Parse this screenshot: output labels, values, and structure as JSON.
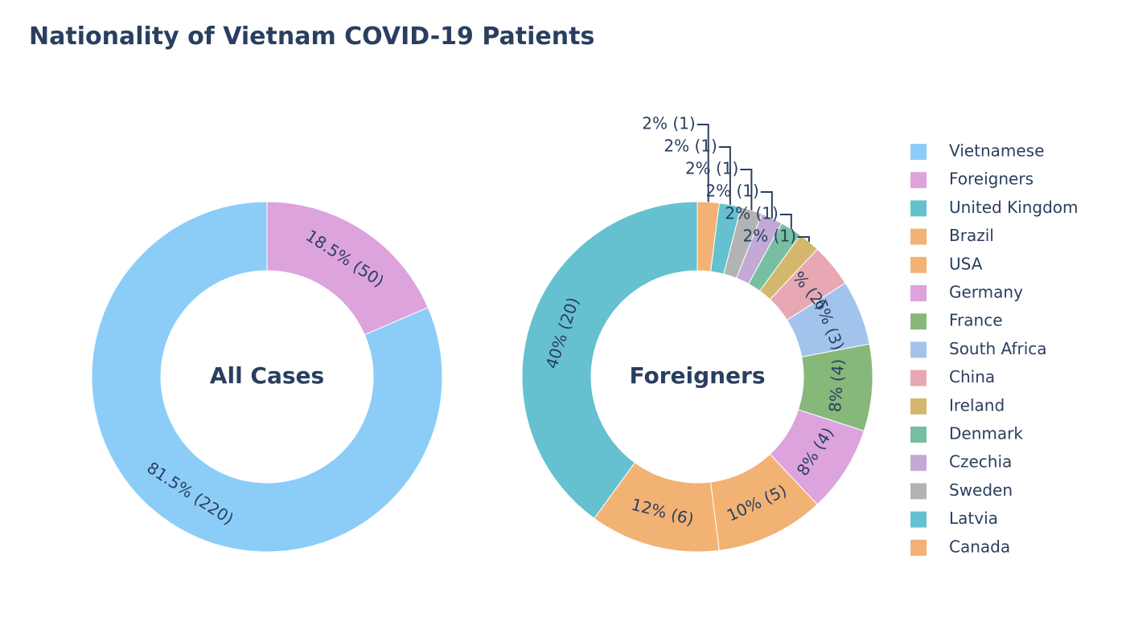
{
  "chart_data": {
    "title": "Nationality of Vietnam COVID-19 Patients",
    "legend": {
      "position": "right",
      "entries": [
        {
          "name": "Vietnamese",
          "color": "#8ccdf7"
        },
        {
          "name": "Foreigners",
          "color": "#dda3dd"
        },
        {
          "name": "United Kingdom",
          "color": "#65c1cf"
        },
        {
          "name": "Brazil",
          "color": "#f2b274"
        },
        {
          "name": "USA",
          "color": "#f2b274"
        },
        {
          "name": "Germany",
          "color": "#dda3dd"
        },
        {
          "name": "France",
          "color": "#86b87a"
        },
        {
          "name": "South Africa",
          "color": "#a2c4ec"
        },
        {
          "name": "China",
          "color": "#e8a8b3"
        },
        {
          "name": "Ireland",
          "color": "#d2b76c"
        },
        {
          "name": "Denmark",
          "color": "#77bea2"
        },
        {
          "name": "Czechia",
          "color": "#c3aad6"
        },
        {
          "name": "Sweden",
          "color": "#b3b3b3"
        },
        {
          "name": "Latvia",
          "color": "#65c1cf"
        },
        {
          "name": "Canada",
          "color": "#f2b274"
        }
      ]
    },
    "charts": [
      {
        "type": "pie",
        "hole": true,
        "center_label": "All Cases",
        "slices": [
          {
            "name": "Vietnamese",
            "value": 220,
            "label": "81.5% (220)",
            "color": "#8ccdf7"
          },
          {
            "name": "Foreigners",
            "value": 50,
            "label": "18.5% (50)",
            "color": "#dda3dd"
          }
        ]
      },
      {
        "type": "pie",
        "hole": true,
        "center_label": "Foreigners",
        "slices": [
          {
            "name": "United Kingdom",
            "value": 20,
            "label": "40% (20)",
            "color": "#65c1cf"
          },
          {
            "name": "Brazil",
            "value": 6,
            "label": "12% (6)",
            "color": "#f2b274"
          },
          {
            "name": "USA",
            "value": 5,
            "label": "10% (5)",
            "color": "#f2b274"
          },
          {
            "name": "Germany",
            "value": 4,
            "label": "8% (4)",
            "color": "#dda3dd"
          },
          {
            "name": "France",
            "value": 4,
            "label": "8% (4)",
            "color": "#86b87a"
          },
          {
            "name": "South Africa",
            "value": 3,
            "label": "6% (3)",
            "color": "#a2c4ec"
          },
          {
            "name": "China",
            "value": 2,
            "label": "4% (2)",
            "color": "#e8a8b3"
          },
          {
            "name": "Ireland",
            "value": 1,
            "label": "2% (1)",
            "color": "#d2b76c"
          },
          {
            "name": "Denmark",
            "value": 1,
            "label": "2% (1)",
            "color": "#77bea2"
          },
          {
            "name": "Czechia",
            "value": 1,
            "label": "2% (1)",
            "color": "#c3aad6"
          },
          {
            "name": "Sweden",
            "value": 1,
            "label": "2% (1)",
            "color": "#b3b3b3"
          },
          {
            "name": "Latvia",
            "value": 1,
            "label": "2% (1)",
            "color": "#65c1cf"
          },
          {
            "name": "Canada",
            "value": 1,
            "label": "2% (1)",
            "color": "#f2b274"
          }
        ]
      }
    ]
  }
}
